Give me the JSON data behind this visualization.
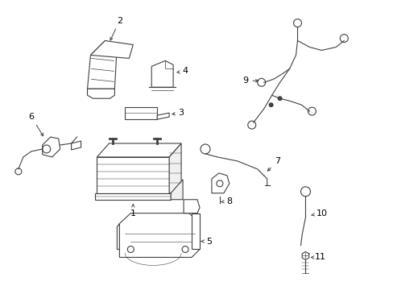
{
  "background_color": "#ffffff",
  "line_color": "#404040",
  "figsize": [
    4.89,
    3.6
  ],
  "dpi": 100
}
